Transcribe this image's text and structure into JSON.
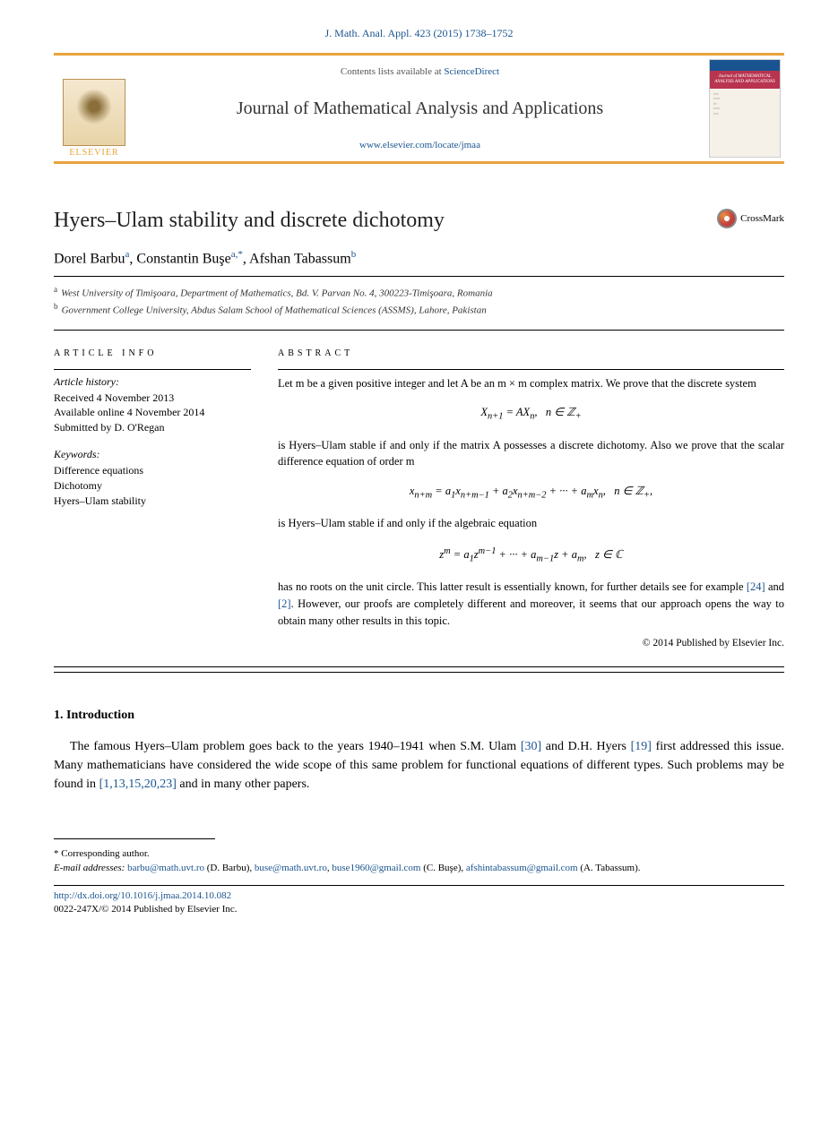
{
  "citation": "J. Math. Anal. Appl. 423 (2015) 1738–1752",
  "header": {
    "contents_prefix": "Contents lists available at ",
    "contents_link": "ScienceDirect",
    "journal_name": "Journal of Mathematical Analysis and Applications",
    "journal_url": "www.elsevier.com/locate/jmaa",
    "publisher": "ELSEVIER",
    "cover_title": "Journal of MATHEMATICAL ANALYSIS AND APPLICATIONS"
  },
  "title": "Hyers–Ulam stability and discrete dichotomy",
  "crossmark": "CrossMark",
  "authors_html": "Dorel Barbu<sup>a</sup>, Constantin Buşe<sup>a,*</sup>, Afshan Tabassum<sup>b</sup>",
  "affiliations": {
    "a": "West University of Timişoara, Department of Mathematics, Bd. V. Parvan No. 4, 300223-Timişoara, Romania",
    "b": "Government College University, Abdus Salam School of Mathematical Sciences (ASSMS), Lahore, Pakistan"
  },
  "article_info": {
    "heading": "article info",
    "history_label": "Article history:",
    "received": "Received 4 November 2013",
    "available": "Available online 4 November 2014",
    "submitted": "Submitted by D. O'Regan",
    "keywords_label": "Keywords:",
    "keywords": [
      "Difference equations",
      "Dichotomy",
      "Hyers–Ulam stability"
    ]
  },
  "abstract": {
    "heading": "abstract",
    "p1": "Let m be a given positive integer and let A be an m × m complex matrix. We prove that the discrete system",
    "eq1": "X<sub>n+1</sub> = AX<sub>n</sub>,&nbsp;&nbsp;&nbsp;n ∈ ℤ<sub>+</sub>",
    "p2": "is Hyers–Ulam stable if and only if the matrix A possesses a discrete dichotomy. Also we prove that the scalar difference equation of order m",
    "eq2": "x<sub>n+m</sub> = a<sub>1</sub>x<sub>n+m−1</sub> + a<sub>2</sub>x<sub>n+m−2</sub> + ··· + a<sub>m</sub>x<sub>n</sub>,&nbsp;&nbsp;&nbsp;n ∈ ℤ<sub>+</sub>,",
    "p3": "is Hyers–Ulam stable if and only if the algebraic equation",
    "eq3": "z<sup>m</sup> = a<sub>1</sub>z<sup>m−1</sup> + ··· + a<sub>m−1</sub>z + a<sub>m</sub>,&nbsp;&nbsp;&nbsp;z ∈ ℂ",
    "p4_pre": "has no roots on the unit circle. This latter result is essentially known, for further details see for example ",
    "ref24": "[24]",
    "p4_mid": " and ",
    "ref2": "[2]",
    "p4_post": ". However, our proofs are completely different and moreover, it seems that our approach opens the way to obtain many other results in this topic.",
    "copyright": "© 2014 Published by Elsevier Inc."
  },
  "intro": {
    "heading": "1. Introduction",
    "text_pre": "The famous Hyers–Ulam problem goes back to the years 1940–1941 when S.M. Ulam ",
    "ref30": "[30]",
    "text_mid1": " and D.H. Hyers ",
    "ref19": "[19]",
    "text_mid2": " first addressed this issue. Many mathematicians have considered the wide scope of this same problem for functional equations of different types. Such problems may be found in ",
    "refs_multi": "[1,13,15,20,23]",
    "text_post": " and in many other papers."
  },
  "footnotes": {
    "corresponding": "* Corresponding author.",
    "email_label": "E-mail addresses:",
    "emails": [
      {
        "addr": "barbu@math.uvt.ro",
        "name": "(D. Barbu)"
      },
      {
        "addr": "buse@math.uvt.ro",
        "name": ""
      },
      {
        "addr": "buse1960@gmail.com",
        "name": "(C. Buşe)"
      },
      {
        "addr": "afshintabassum@gmail.com",
        "name": "(A. Tabassum)"
      }
    ]
  },
  "footer": {
    "doi": "http://dx.doi.org/10.1016/j.jmaa.2014.10.082",
    "issn_line": "0022-247X/© 2014 Published by Elsevier Inc."
  },
  "colors": {
    "link": "#1a5490",
    "accent": "#e8a33d",
    "cover_red": "#b8344f"
  }
}
